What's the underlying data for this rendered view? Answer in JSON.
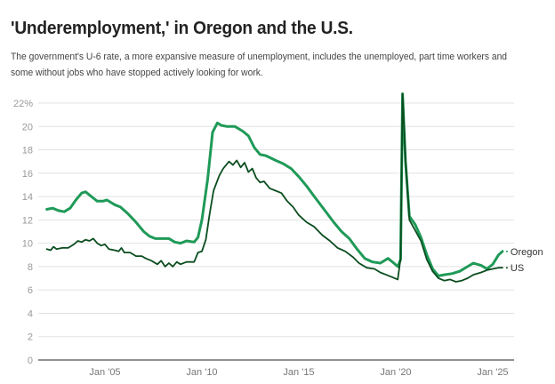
{
  "title": "'Underemployment,' in Oregon and the U.S.",
  "subtitle": "The government's U-6 rate, a more expansive measure of unemployment, includes the unemployed, part time workers and some without jobs who have stopped actively looking for work.",
  "chart_data": {
    "type": "line",
    "title": "'Underemployment,' in Oregon and the U.S.",
    "xlabel": "",
    "ylabel": "",
    "ylim": [
      0,
      22
    ],
    "xlim": [
      2002,
      2025.6
    ],
    "grid": true,
    "y_ticks": [
      {
        "value": 0,
        "label": "0"
      },
      {
        "value": 2,
        "label": "2"
      },
      {
        "value": 4,
        "label": "4"
      },
      {
        "value": 6,
        "label": "6"
      },
      {
        "value": 8,
        "label": "8"
      },
      {
        "value": 10,
        "label": "10"
      },
      {
        "value": 12,
        "label": "12"
      },
      {
        "value": 14,
        "label": "14"
      },
      {
        "value": 16,
        "label": "16"
      },
      {
        "value": 18,
        "label": "18"
      },
      {
        "value": 20,
        "label": "20"
      },
      {
        "value": 22,
        "label": "22%"
      }
    ],
    "x_ticks": [
      {
        "value": 2005,
        "label": "Jan '05"
      },
      {
        "value": 2010,
        "label": "Jan '10"
      },
      {
        "value": 2015,
        "label": "Jan '15"
      },
      {
        "value": 2020,
        "label": "Jan '20"
      },
      {
        "value": 2025,
        "label": "Jan '25"
      }
    ],
    "series": [
      {
        "name": "Oregon",
        "color": "#1f9a58",
        "points": [
          [
            2002.0,
            12.9
          ],
          [
            2002.3,
            13.0
          ],
          [
            2002.6,
            12.8
          ],
          [
            2002.9,
            12.7
          ],
          [
            2003.2,
            13.0
          ],
          [
            2003.5,
            13.7
          ],
          [
            2003.8,
            14.3
          ],
          [
            2004.0,
            14.4
          ],
          [
            2004.3,
            14.0
          ],
          [
            2004.6,
            13.6
          ],
          [
            2004.9,
            13.6
          ],
          [
            2005.1,
            13.7
          ],
          [
            2005.5,
            13.3
          ],
          [
            2005.8,
            13.1
          ],
          [
            2006.2,
            12.5
          ],
          [
            2006.6,
            11.8
          ],
          [
            2007.0,
            11.0
          ],
          [
            2007.3,
            10.6
          ],
          [
            2007.6,
            10.4
          ],
          [
            2008.0,
            10.4
          ],
          [
            2008.3,
            10.4
          ],
          [
            2008.6,
            10.1
          ],
          [
            2008.9,
            10.0
          ],
          [
            2009.2,
            10.2
          ],
          [
            2009.6,
            10.1
          ],
          [
            2009.8,
            10.5
          ],
          [
            2010.0,
            12.0
          ],
          [
            2010.3,
            15.5
          ],
          [
            2010.55,
            19.5
          ],
          [
            2010.8,
            20.3
          ],
          [
            2011.0,
            20.1
          ],
          [
            2011.3,
            20.0
          ],
          [
            2011.7,
            20.0
          ],
          [
            2012.1,
            19.6
          ],
          [
            2012.4,
            19.2
          ],
          [
            2012.7,
            18.2
          ],
          [
            2013.0,
            17.6
          ],
          [
            2013.3,
            17.5
          ],
          [
            2013.8,
            17.1
          ],
          [
            2014.2,
            16.8
          ],
          [
            2014.6,
            16.4
          ],
          [
            2015.0,
            15.7
          ],
          [
            2015.4,
            14.9
          ],
          [
            2015.8,
            14.0
          ],
          [
            2016.3,
            12.9
          ],
          [
            2016.8,
            11.8
          ],
          [
            2017.2,
            11.0
          ],
          [
            2017.6,
            10.4
          ],
          [
            2018.0,
            9.5
          ],
          [
            2018.4,
            8.7
          ],
          [
            2018.8,
            8.4
          ],
          [
            2019.2,
            8.3
          ],
          [
            2019.6,
            8.7
          ],
          [
            2019.9,
            8.3
          ],
          [
            2020.1,
            8.0
          ],
          [
            2020.25,
            8.6
          ],
          [
            2020.35,
            22.8
          ],
          [
            2020.5,
            17.0
          ],
          [
            2020.7,
            12.3
          ],
          [
            2021.0,
            11.6
          ],
          [
            2021.3,
            10.5
          ],
          [
            2021.6,
            9.0
          ],
          [
            2021.9,
            7.8
          ],
          [
            2022.2,
            7.2
          ],
          [
            2022.5,
            7.3
          ],
          [
            2022.9,
            7.4
          ],
          [
            2023.3,
            7.6
          ],
          [
            2023.7,
            8.0
          ],
          [
            2024.0,
            8.3
          ],
          [
            2024.4,
            8.1
          ],
          [
            2024.7,
            7.8
          ],
          [
            2025.0,
            8.2
          ],
          [
            2025.3,
            9.0
          ],
          [
            2025.5,
            9.3
          ]
        ]
      },
      {
        "name": "US",
        "color": "#0b4d1f",
        "points": [
          [
            2002.0,
            9.5
          ],
          [
            2002.2,
            9.4
          ],
          [
            2002.35,
            9.7
          ],
          [
            2002.5,
            9.5
          ],
          [
            2002.8,
            9.6
          ],
          [
            2003.1,
            9.6
          ],
          [
            2003.4,
            9.9
          ],
          [
            2003.6,
            10.2
          ],
          [
            2003.8,
            10.1
          ],
          [
            2004.0,
            10.3
          ],
          [
            2004.2,
            10.2
          ],
          [
            2004.4,
            10.4
          ],
          [
            2004.6,
            10.0
          ],
          [
            2004.8,
            9.8
          ],
          [
            2005.0,
            9.9
          ],
          [
            2005.2,
            9.5
          ],
          [
            2005.5,
            9.4
          ],
          [
            2005.7,
            9.3
          ],
          [
            2005.85,
            9.6
          ],
          [
            2006.0,
            9.2
          ],
          [
            2006.3,
            9.2
          ],
          [
            2006.6,
            8.9
          ],
          [
            2006.9,
            8.9
          ],
          [
            2007.1,
            8.7
          ],
          [
            2007.4,
            8.5
          ],
          [
            2007.7,
            8.2
          ],
          [
            2007.9,
            8.5
          ],
          [
            2008.1,
            8.0
          ],
          [
            2008.3,
            8.3
          ],
          [
            2008.5,
            8.0
          ],
          [
            2008.7,
            8.4
          ],
          [
            2008.9,
            8.2
          ],
          [
            2009.2,
            8.4
          ],
          [
            2009.6,
            8.4
          ],
          [
            2009.8,
            9.2
          ],
          [
            2010.0,
            9.3
          ],
          [
            2010.2,
            10.3
          ],
          [
            2010.4,
            12.5
          ],
          [
            2010.6,
            14.5
          ],
          [
            2010.9,
            15.8
          ],
          [
            2011.1,
            16.4
          ],
          [
            2011.4,
            17.0
          ],
          [
            2011.6,
            16.7
          ],
          [
            2011.8,
            17.1
          ],
          [
            2012.0,
            16.5
          ],
          [
            2012.2,
            16.9
          ],
          [
            2012.4,
            16.1
          ],
          [
            2012.6,
            16.4
          ],
          [
            2012.8,
            15.6
          ],
          [
            2013.0,
            15.2
          ],
          [
            2013.2,
            15.3
          ],
          [
            2013.5,
            14.7
          ],
          [
            2013.8,
            14.5
          ],
          [
            2014.1,
            14.3
          ],
          [
            2014.4,
            13.6
          ],
          [
            2014.7,
            13.1
          ],
          [
            2015.0,
            12.4
          ],
          [
            2015.4,
            11.8
          ],
          [
            2015.8,
            11.4
          ],
          [
            2016.2,
            10.7
          ],
          [
            2016.6,
            10.2
          ],
          [
            2017.0,
            9.6
          ],
          [
            2017.4,
            9.3
          ],
          [
            2017.8,
            8.8
          ],
          [
            2018.1,
            8.3
          ],
          [
            2018.5,
            7.9
          ],
          [
            2018.9,
            7.8
          ],
          [
            2019.2,
            7.5
          ],
          [
            2019.5,
            7.3
          ],
          [
            2019.8,
            7.1
          ],
          [
            2020.1,
            6.9
          ],
          [
            2020.25,
            8.7
          ],
          [
            2020.35,
            22.8
          ],
          [
            2020.5,
            17.2
          ],
          [
            2020.7,
            12.0
          ],
          [
            2021.0,
            11.1
          ],
          [
            2021.3,
            10.2
          ],
          [
            2021.6,
            8.6
          ],
          [
            2021.9,
            7.6
          ],
          [
            2022.2,
            7.0
          ],
          [
            2022.5,
            6.8
          ],
          [
            2022.8,
            6.9
          ],
          [
            2023.1,
            6.7
          ],
          [
            2023.4,
            6.8
          ],
          [
            2023.7,
            7.0
          ],
          [
            2024.0,
            7.3
          ],
          [
            2024.4,
            7.5
          ],
          [
            2024.7,
            7.7
          ],
          [
            2025.0,
            7.8
          ],
          [
            2025.3,
            7.9
          ],
          [
            2025.5,
            7.9
          ]
        ]
      }
    ],
    "end_labels": [
      "Oregon",
      "US"
    ],
    "legend": "inline-right"
  }
}
